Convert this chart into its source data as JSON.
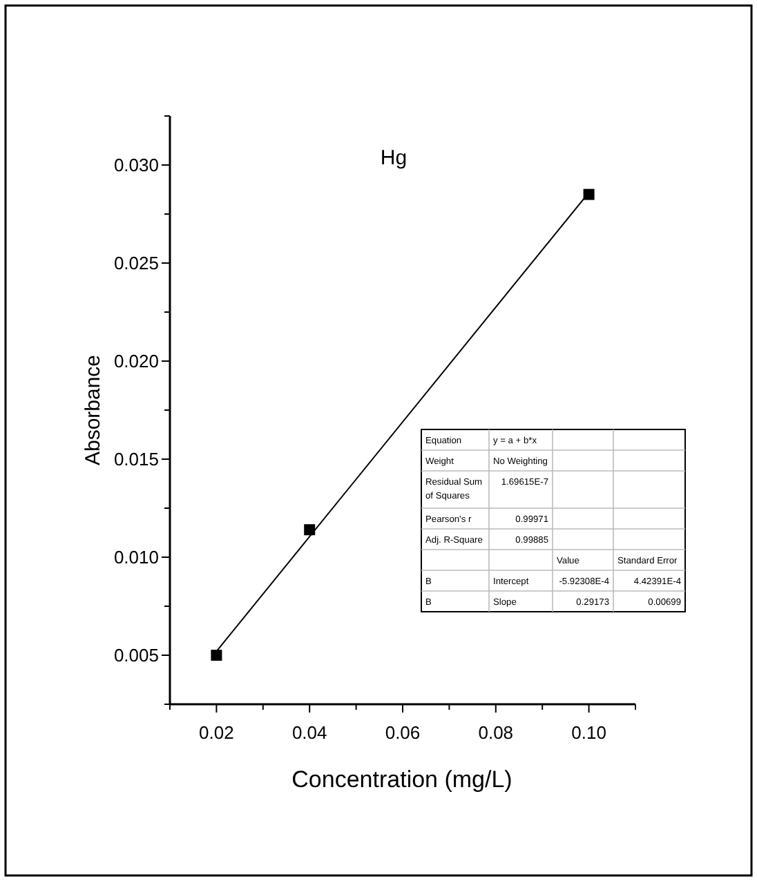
{
  "chart_data": {
    "type": "scatter",
    "title": "Hg",
    "xlabel": "Concentration (mg/L)",
    "ylabel": "Absorbance",
    "xlim": [
      0.01,
      0.11
    ],
    "ylim": [
      0.0025,
      0.0325
    ],
    "xticks": [
      {
        "value": 0.01,
        "label": null
      },
      {
        "value": 0.02,
        "label": "0.02"
      },
      {
        "value": 0.03,
        "label": null
      },
      {
        "value": 0.04,
        "label": "0.04"
      },
      {
        "value": 0.05,
        "label": null
      },
      {
        "value": 0.06,
        "label": "0.06"
      },
      {
        "value": 0.07,
        "label": null
      },
      {
        "value": 0.08,
        "label": "0.08"
      },
      {
        "value": 0.09,
        "label": null
      },
      {
        "value": 0.1,
        "label": "0.10"
      },
      {
        "value": 0.11,
        "label": null
      }
    ],
    "yticks": [
      {
        "value": 0.0025,
        "label": null
      },
      {
        "value": 0.005,
        "label": "0.005"
      },
      {
        "value": 0.0075,
        "label": null
      },
      {
        "value": 0.01,
        "label": "0.010"
      },
      {
        "value": 0.0125,
        "label": null
      },
      {
        "value": 0.015,
        "label": "0.015"
      },
      {
        "value": 0.0175,
        "label": null
      },
      {
        "value": 0.02,
        "label": "0.020"
      },
      {
        "value": 0.0225,
        "label": null
      },
      {
        "value": 0.025,
        "label": "0.025"
      },
      {
        "value": 0.0275,
        "label": null
      },
      {
        "value": 0.03,
        "label": "0.030"
      },
      {
        "value": 0.0325,
        "label": null
      }
    ],
    "series": [
      {
        "type": "line",
        "color": "#000000",
        "marker": "none",
        "x": [
          0.02,
          0.1
        ],
        "values": [
          0.0052,
          0.0286
        ]
      },
      {
        "color": "#000000",
        "marker": "square",
        "x": [
          0.02,
          0.04,
          0.1
        ],
        "values": [
          0.005,
          0.0114,
          0.0285
        ]
      }
    ],
    "annotations": [
      "Equation",
      "y = a + b*x",
      "Weight",
      "No Weighting",
      "Residual Sum of Squares",
      "1.69615E-7",
      "Pearson's r",
      "0.99971",
      "Adj. R-Square",
      "0.99885",
      "Value",
      "Standard Error",
      "B",
      "Intercept",
      "-5.92308E-4",
      "4.42391E-4",
      "B",
      "Slope",
      "0.29173",
      "0.00699"
    ]
  }
}
